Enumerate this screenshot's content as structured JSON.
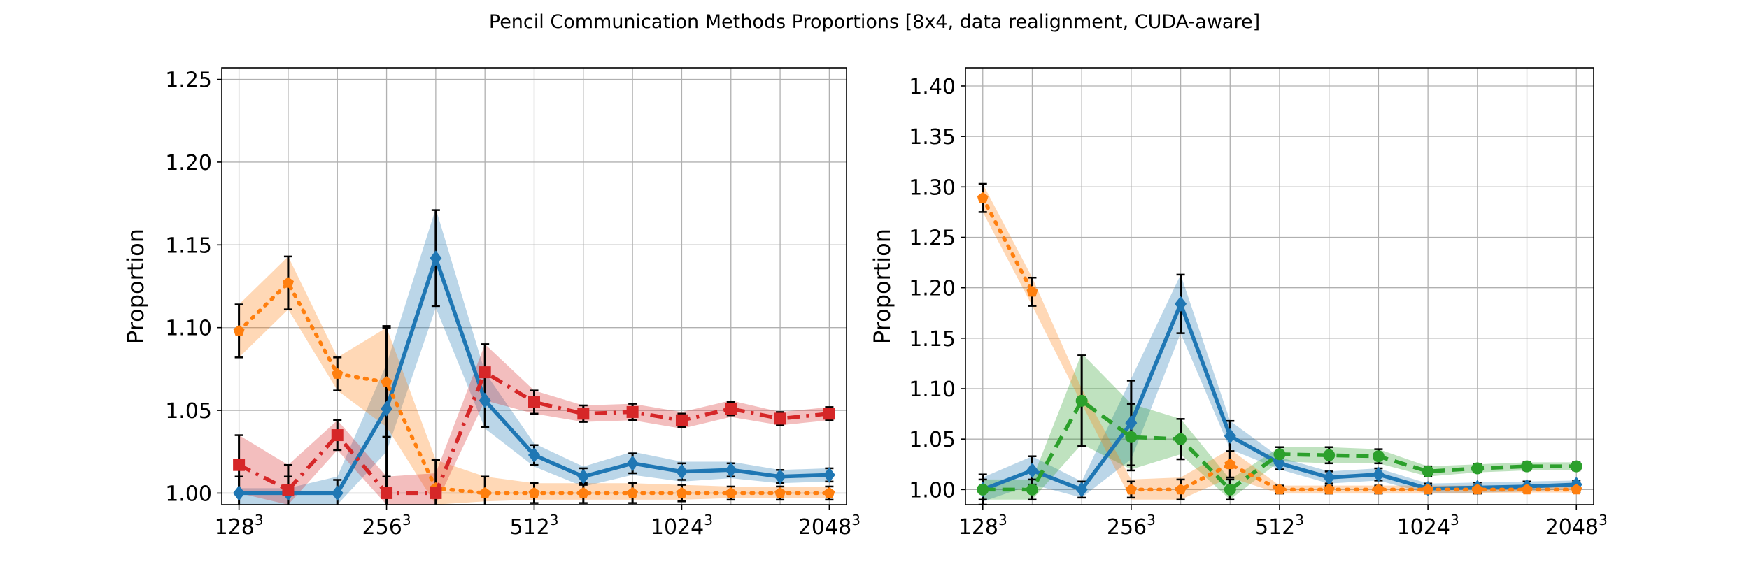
{
  "figure": {
    "title": "Pencil Communication Methods Proportions [8x4, data realignment, CUDA-aware]"
  },
  "chart_data": [
    {
      "type": "line",
      "ylabel": "Proportion",
      "xlabel": "",
      "ylim": [
        0.993,
        1.257
      ],
      "xlim": [
        0.65,
        13.35
      ],
      "grid": true,
      "yticks": [
        "1.00",
        "1.05",
        "1.10",
        "1.15",
        "1.20",
        "1.25"
      ],
      "ytick_values": [
        1.0,
        1.05,
        1.1,
        1.15,
        1.2,
        1.25
      ],
      "xtick_positions": [
        1,
        4,
        7,
        10,
        13
      ],
      "xtick_bases": [
        "128",
        "256",
        "512",
        "1024",
        "2048"
      ],
      "xtick_exponents": [
        "3",
        "3",
        "3",
        "3",
        "3"
      ],
      "x": [
        1,
        2,
        3,
        4,
        5,
        6,
        7,
        8,
        9,
        10,
        11,
        12,
        13
      ],
      "series": [
        {
          "color": "#1f77b4",
          "linestyle": "solid",
          "marker": "diamond",
          "values": [
            1.0,
            1.0,
            1.0,
            1.051,
            1.142,
            1.056,
            1.023,
            1.01,
            1.018,
            1.013,
            1.014,
            1.01,
            1.011
          ],
          "band_low": [
            0.993,
            0.993,
            0.993,
            1.025,
            1.112,
            1.039,
            1.016,
            1.004,
            1.011,
            1.007,
            1.009,
            1.006,
            1.007
          ],
          "band_high": [
            1.003,
            1.003,
            1.01,
            1.078,
            1.172,
            1.073,
            1.03,
            1.016,
            1.025,
            1.019,
            1.019,
            1.014,
            1.015
          ],
          "err": [
            0.01,
            0.01,
            0.008,
            0.05,
            0.029,
            0.016,
            0.006,
            0.005,
            0.006,
            0.005,
            0.004,
            0.004,
            0.004
          ]
        },
        {
          "color": "#ff7f0e",
          "linestyle": "dotted",
          "marker": "pentagon",
          "values": [
            1.098,
            1.127,
            1.072,
            1.067,
            1.003,
            1.0,
            1.0,
            1.0,
            1.0,
            1.0,
            1.0,
            1.0,
            1.0
          ],
          "band_low": [
            1.082,
            1.111,
            1.062,
            1.04,
            0.993,
            0.995,
            0.996,
            0.996,
            0.996,
            0.996,
            0.997,
            0.997,
            0.997
          ],
          "band_high": [
            1.114,
            1.143,
            1.082,
            1.1,
            1.02,
            1.01,
            1.006,
            1.006,
            1.006,
            1.005,
            1.004,
            1.004,
            1.004
          ],
          "err": [
            0.016,
            0.016,
            0.01,
            0.033,
            0.017,
            0.01,
            0.006,
            0.006,
            0.006,
            0.005,
            0.004,
            0.004,
            0.004
          ]
        },
        {
          "color": "#d62728",
          "linestyle": "dashdot",
          "marker": "square",
          "values": [
            1.017,
            1.002,
            1.035,
            1.0,
            1.0,
            1.073,
            1.055,
            1.048,
            1.049,
            1.044,
            1.051,
            1.045,
            1.048
          ],
          "band_low": [
            1.0,
            0.993,
            1.026,
            0.993,
            0.993,
            1.056,
            1.048,
            1.043,
            1.044,
            1.039,
            1.046,
            1.041,
            1.044
          ],
          "band_high": [
            1.035,
            1.017,
            1.044,
            1.01,
            1.012,
            1.09,
            1.062,
            1.053,
            1.054,
            1.049,
            1.056,
            1.049,
            1.052
          ],
          "err": [
            0.018,
            0.015,
            0.009,
            0.01,
            0.02,
            0.017,
            0.007,
            0.005,
            0.005,
            0.004,
            0.004,
            0.004,
            0.004
          ]
        }
      ]
    },
    {
      "type": "line",
      "ylabel": "Proportion",
      "xlabel": "",
      "ylim": [
        0.985,
        1.418
      ],
      "xlim": [
        0.65,
        13.35
      ],
      "grid": true,
      "yticks": [
        "1.00",
        "1.05",
        "1.10",
        "1.15",
        "1.20",
        "1.25",
        "1.30",
        "1.35",
        "1.40"
      ],
      "ytick_values": [
        1.0,
        1.05,
        1.1,
        1.15,
        1.2,
        1.25,
        1.3,
        1.35,
        1.4
      ],
      "xtick_positions": [
        1,
        4,
        7,
        10,
        13
      ],
      "xtick_bases": [
        "128",
        "256",
        "512",
        "1024",
        "2048"
      ],
      "xtick_exponents": [
        "3",
        "3",
        "3",
        "3",
        "3"
      ],
      "x": [
        1,
        2,
        3,
        4,
        5,
        6,
        7,
        8,
        9,
        10,
        11,
        12,
        13
      ],
      "series": [
        {
          "color": "#1f77b4",
          "linestyle": "solid",
          "marker": "diamond",
          "values": [
            1.0,
            1.019,
            1.0,
            1.066,
            1.184,
            1.053,
            1.026,
            1.012,
            1.015,
            1.001,
            1.002,
            1.003,
            1.005
          ],
          "band_low": [
            0.988,
            1.005,
            0.992,
            1.03,
            1.155,
            1.04,
            1.02,
            1.006,
            1.009,
            0.996,
            0.997,
            0.998,
            1.001
          ],
          "band_high": [
            1.012,
            1.033,
            1.008,
            1.11,
            1.213,
            1.068,
            1.032,
            1.018,
            1.021,
            1.006,
            1.007,
            1.008,
            1.009
          ],
          "err": [
            0.015,
            0.014,
            0.008,
            0.042,
            0.029,
            0.015,
            0.006,
            0.006,
            0.006,
            0.005,
            0.005,
            0.005,
            0.004
          ]
        },
        {
          "color": "#2ca02c",
          "linestyle": "dashed",
          "marker": "circle",
          "values": [
            1.0,
            1.0,
            1.088,
            1.052,
            1.05,
            1.0,
            1.035,
            1.034,
            1.033,
            1.018,
            1.021,
            1.023,
            1.023
          ],
          "band_low": [
            0.99,
            0.99,
            1.045,
            1.02,
            1.035,
            0.99,
            1.028,
            1.026,
            1.026,
            1.013,
            1.017,
            1.019,
            1.019
          ],
          "band_high": [
            1.01,
            1.01,
            1.135,
            1.085,
            1.07,
            1.01,
            1.042,
            1.042,
            1.04,
            1.023,
            1.025,
            1.027,
            1.027
          ],
          "err": [
            0.01,
            0.01,
            0.045,
            0.033,
            0.02,
            0.01,
            0.007,
            0.008,
            0.007,
            0.005,
            0.004,
            0.004,
            0.004
          ]
        },
        {
          "color": "#ff7f0e",
          "linestyle": "dotted",
          "marker": "pentagon",
          "values": [
            1.289,
            1.196,
            null,
            1.0,
            1.0,
            1.025,
            1.0,
            1.0,
            1.0,
            1.0,
            1.0,
            1.0,
            1.0
          ],
          "band_low": [
            1.275,
            1.182,
            1.085,
            0.99,
            0.99,
            1.012,
            0.996,
            0.996,
            0.996,
            0.996,
            0.996,
            0.997,
            0.997
          ],
          "band_high": [
            1.303,
            1.21,
            1.1,
            1.01,
            1.012,
            1.04,
            1.004,
            1.004,
            1.004,
            1.004,
            1.004,
            1.003,
            1.003
          ],
          "err": [
            0.014,
            0.014,
            0,
            0.008,
            0.01,
            0.013,
            0.004,
            0.004,
            0.004,
            0.004,
            0.004,
            0.003,
            0.003
          ]
        }
      ]
    }
  ]
}
